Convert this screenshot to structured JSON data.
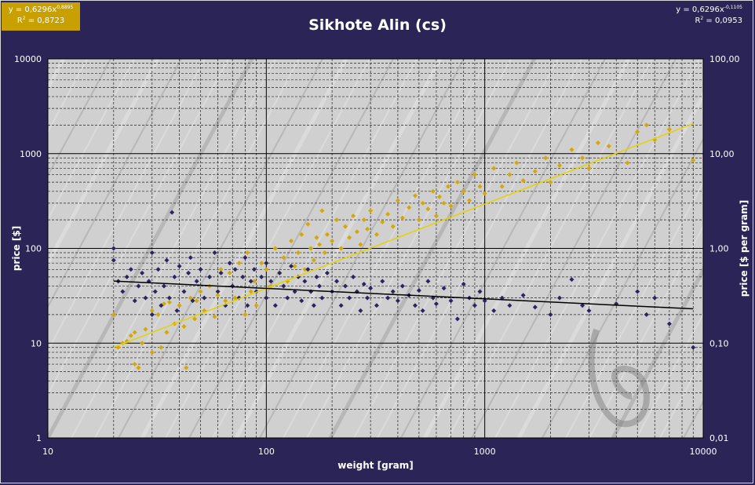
{
  "chart_data": {
    "type": "scatter",
    "title": "Sikhote Alin (cs)",
    "xlabel": "weight  [gram]",
    "ylabel": "price  [$]",
    "y2label": "price  [$ per gram]",
    "x_scale": "log",
    "y_scale": "log",
    "y2_scale": "log",
    "xlim": [
      10,
      10000
    ],
    "ylim": [
      1,
      10000
    ],
    "y2lim": [
      0.01,
      100
    ],
    "x_ticks": [
      "10",
      "100",
      "1000",
      "10000"
    ],
    "y_ticks": [
      "1",
      "10",
      "100",
      "1000",
      "10000"
    ],
    "y2_ticks": [
      "0,01",
      "0,10",
      "1,00",
      "10,00",
      "100,00"
    ],
    "grid": true,
    "colors": {
      "background": "#2b2456",
      "plot_background": "#d0d0d0",
      "price_points": "#d4a800",
      "price_trend": "#e6d200",
      "per_gram_points": "#2a2460",
      "per_gram_trend": "#000000",
      "text": "#ffffff",
      "equation_box": "#c8a000"
    },
    "series": [
      {
        "axis": "left",
        "marker": "diamond",
        "trendline": {
          "type": "power",
          "a": 0.6296,
          "b": 0.8895,
          "r2": 0.8723
        },
        "points": [
          [
            20,
            20
          ],
          [
            21,
            9
          ],
          [
            22,
            10
          ],
          [
            23,
            10.5
          ],
          [
            24,
            12
          ],
          [
            25,
            6
          ],
          [
            25,
            13
          ],
          [
            26,
            5.5
          ],
          [
            27,
            10
          ],
          [
            28,
            14
          ],
          [
            30,
            8
          ],
          [
            30,
            22
          ],
          [
            32,
            20
          ],
          [
            33,
            9
          ],
          [
            34,
            26
          ],
          [
            35,
            13
          ],
          [
            36,
            27
          ],
          [
            38,
            16
          ],
          [
            40,
            25
          ],
          [
            42,
            15
          ],
          [
            43,
            5.5
          ],
          [
            45,
            30
          ],
          [
            47,
            18
          ],
          [
            48,
            28
          ],
          [
            50,
            35
          ],
          [
            52,
            22
          ],
          [
            55,
            40
          ],
          [
            58,
            19
          ],
          [
            60,
            32
          ],
          [
            62,
            60
          ],
          [
            65,
            28
          ],
          [
            68,
            55
          ],
          [
            70,
            40
          ],
          [
            72,
            30
          ],
          [
            75,
            70
          ],
          [
            78,
            50
          ],
          [
            80,
            20
          ],
          [
            82,
            90
          ],
          [
            85,
            35
          ],
          [
            88,
            45
          ],
          [
            90,
            25
          ],
          [
            95,
            70
          ],
          [
            100,
            60
          ],
          [
            105,
            40
          ],
          [
            110,
            100
          ],
          [
            115,
            55
          ],
          [
            120,
            80
          ],
          [
            125,
            45
          ],
          [
            130,
            120
          ],
          [
            135,
            65
          ],
          [
            140,
            90
          ],
          [
            145,
            140
          ],
          [
            150,
            60
          ],
          [
            155,
            180
          ],
          [
            160,
            100
          ],
          [
            165,
            75
          ],
          [
            170,
            130
          ],
          [
            175,
            110
          ],
          [
            180,
            250
          ],
          [
            185,
            90
          ],
          [
            190,
            140
          ],
          [
            200,
            120
          ],
          [
            210,
            200
          ],
          [
            220,
            100
          ],
          [
            230,
            170
          ],
          [
            240,
            130
          ],
          [
            250,
            220
          ],
          [
            260,
            150
          ],
          [
            270,
            110
          ],
          [
            280,
            200
          ],
          [
            290,
            160
          ],
          [
            300,
            250
          ],
          [
            320,
            140
          ],
          [
            340,
            190
          ],
          [
            360,
            230
          ],
          [
            380,
            170
          ],
          [
            400,
            320
          ],
          [
            420,
            210
          ],
          [
            450,
            270
          ],
          [
            480,
            360
          ],
          [
            500,
            200
          ],
          [
            520,
            300
          ],
          [
            550,
            260
          ],
          [
            580,
            400
          ],
          [
            600,
            220
          ],
          [
            620,
            350
          ],
          [
            650,
            300
          ],
          [
            680,
            450
          ],
          [
            700,
            280
          ],
          [
            750,
            500
          ],
          [
            800,
            400
          ],
          [
            850,
            320
          ],
          [
            900,
            600
          ],
          [
            950,
            450
          ],
          [
            1000,
            380
          ],
          [
            1100,
            700
          ],
          [
            1200,
            450
          ],
          [
            1300,
            600
          ],
          [
            1400,
            800
          ],
          [
            1500,
            520
          ],
          [
            1700,
            650
          ],
          [
            1900,
            900
          ],
          [
            2000,
            500
          ],
          [
            2200,
            750
          ],
          [
            2500,
            1100
          ],
          [
            2800,
            900
          ],
          [
            3000,
            700
          ],
          [
            3300,
            1300
          ],
          [
            3700,
            1200
          ],
          [
            4500,
            800
          ],
          [
            5000,
            1700
          ],
          [
            5500,
            2000
          ],
          [
            6000,
            1400
          ],
          [
            7000,
            1800
          ],
          [
            9000,
            850
          ]
        ]
      },
      {
        "axis": "right",
        "marker": "diamond",
        "trendline": {
          "type": "power",
          "a": 0.6296,
          "b": -0.1105,
          "r2": 0.0953
        },
        "points": [
          [
            20,
            1.0
          ],
          [
            20,
            0.75
          ],
          [
            21,
            0.45
          ],
          [
            22,
            0.35
          ],
          [
            23,
            0.5
          ],
          [
            24,
            0.6
          ],
          [
            25,
            0.28
          ],
          [
            26,
            0.4
          ],
          [
            27,
            0.55
          ],
          [
            28,
            0.3
          ],
          [
            29,
            0.45
          ],
          [
            30,
            0.9
          ],
          [
            30,
            0.2
          ],
          [
            31,
            0.35
          ],
          [
            32,
            0.6
          ],
          [
            33,
            0.25
          ],
          [
            34,
            0.4
          ],
          [
            35,
            0.75
          ],
          [
            36,
            0.3
          ],
          [
            37,
            2.4
          ],
          [
            38,
            0.5
          ],
          [
            39,
            0.22
          ],
          [
            40,
            0.65
          ],
          [
            42,
            0.35
          ],
          [
            44,
            0.55
          ],
          [
            45,
            0.8
          ],
          [
            46,
            0.28
          ],
          [
            48,
            0.45
          ],
          [
            50,
            0.6
          ],
          [
            52,
            0.3
          ],
          [
            55,
            0.5
          ],
          [
            58,
            0.9
          ],
          [
            60,
            0.35
          ],
          [
            62,
            0.55
          ],
          [
            65,
            0.25
          ],
          [
            68,
            0.7
          ],
          [
            70,
            0.4
          ],
          [
            72,
            0.6
          ],
          [
            75,
            0.3
          ],
          [
            78,
            0.5
          ],
          [
            80,
            0.8
          ],
          [
            82,
            0.25
          ],
          [
            85,
            0.45
          ],
          [
            88,
            0.6
          ],
          [
            90,
            0.35
          ],
          [
            95,
            0.5
          ],
          [
            100,
            0.7
          ],
          [
            100,
            0.3
          ],
          [
            105,
            0.45
          ],
          [
            110,
            0.25
          ],
          [
            115,
            0.55
          ],
          [
            120,
            0.4
          ],
          [
            125,
            0.3
          ],
          [
            130,
            0.65
          ],
          [
            135,
            0.35
          ],
          [
            140,
            0.5
          ],
          [
            145,
            0.28
          ],
          [
            150,
            0.45
          ],
          [
            155,
            0.6
          ],
          [
            160,
            0.35
          ],
          [
            165,
            0.25
          ],
          [
            170,
            0.5
          ],
          [
            175,
            0.4
          ],
          [
            180,
            0.3
          ],
          [
            190,
            0.55
          ],
          [
            200,
            0.35
          ],
          [
            210,
            0.45
          ],
          [
            220,
            0.25
          ],
          [
            230,
            0.4
          ],
          [
            240,
            0.3
          ],
          [
            250,
            0.5
          ],
          [
            260,
            0.35
          ],
          [
            270,
            0.22
          ],
          [
            280,
            0.42
          ],
          [
            290,
            0.3
          ],
          [
            300,
            0.38
          ],
          [
            320,
            0.25
          ],
          [
            340,
            0.45
          ],
          [
            360,
            0.3
          ],
          [
            380,
            0.35
          ],
          [
            400,
            0.28
          ],
          [
            420,
            0.4
          ],
          [
            450,
            0.32
          ],
          [
            480,
            0.25
          ],
          [
            500,
            0.36
          ],
          [
            520,
            0.22
          ],
          [
            550,
            0.45
          ],
          [
            580,
            0.3
          ],
          [
            600,
            0.26
          ],
          [
            650,
            0.38
          ],
          [
            700,
            0.28
          ],
          [
            750,
            0.18
          ],
          [
            800,
            0.42
          ],
          [
            850,
            0.3
          ],
          [
            900,
            0.25
          ],
          [
            950,
            0.35
          ],
          [
            1000,
            0.28
          ],
          [
            1100,
            0.22
          ],
          [
            1200,
            0.3
          ],
          [
            1300,
            0.25
          ],
          [
            1500,
            0.32
          ],
          [
            1700,
            0.24
          ],
          [
            2000,
            0.2
          ],
          [
            2200,
            0.3
          ],
          [
            2500,
            0.47
          ],
          [
            2800,
            0.25
          ],
          [
            3000,
            0.22
          ],
          [
            4000,
            0.26
          ],
          [
            5000,
            0.35
          ],
          [
            5500,
            0.2
          ],
          [
            6000,
            0.3
          ],
          [
            7000,
            0.16
          ],
          [
            9000,
            0.09
          ]
        ]
      }
    ],
    "annotations": {
      "left_equation": {
        "a": "0,6296",
        "b": "0,8895",
        "r2": "0,8723"
      },
      "right_equation": {
        "a": "0,6296",
        "b": "-0,1105",
        "r2": "0,0953"
      }
    }
  }
}
